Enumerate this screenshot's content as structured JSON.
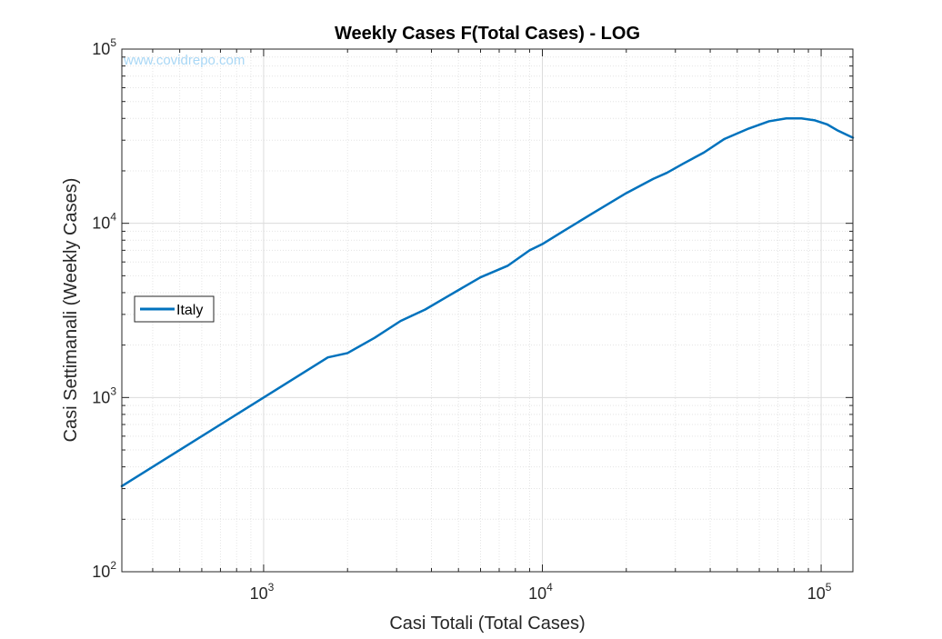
{
  "chart_data": {
    "type": "line",
    "title": "Weekly Cases F(Total Cases) - LOG",
    "xlabel": "Casi Totali (Total Cases)",
    "ylabel": "Casi Settimanali (Weekly Cases)",
    "xscale": "log",
    "yscale": "log",
    "xlim": [
      310,
      130000
    ],
    "ylim": [
      100,
      100000
    ],
    "x_ticks": [
      {
        "base": "10",
        "exp": "3",
        "value": 1000
      },
      {
        "base": "10",
        "exp": "4",
        "value": 10000
      },
      {
        "base": "10",
        "exp": "5",
        "value": 100000
      }
    ],
    "y_ticks": [
      {
        "base": "10",
        "exp": "2",
        "value": 100
      },
      {
        "base": "10",
        "exp": "3",
        "value": 1000
      },
      {
        "base": "10",
        "exp": "4",
        "value": 10000
      },
      {
        "base": "10",
        "exp": "5",
        "value": 100000
      }
    ],
    "grid": true,
    "minor_grid": true,
    "legend_position": "left",
    "watermark": "www.covidrepo.com",
    "series": [
      {
        "name": "Italy",
        "color": "#0072bd",
        "x": [
          310,
          500,
          800,
          1200,
          1700,
          2000,
          2500,
          3100,
          3800,
          4500,
          6000,
          7500,
          9000,
          10000,
          12000,
          15000,
          20000,
          25000,
          28000,
          32000,
          38000,
          45000,
          55000,
          65000,
          75000,
          85000,
          95000,
          105000,
          115000,
          130000
        ],
        "y": [
          310,
          500,
          800,
          1200,
          1700,
          1800,
          2200,
          2750,
          3200,
          3750,
          4900,
          5700,
          7000,
          7600,
          9100,
          11300,
          14900,
          18000,
          19500,
          22000,
          25500,
          30500,
          35000,
          38500,
          40000,
          40000,
          39000,
          37000,
          34000,
          31000
        ]
      }
    ]
  }
}
